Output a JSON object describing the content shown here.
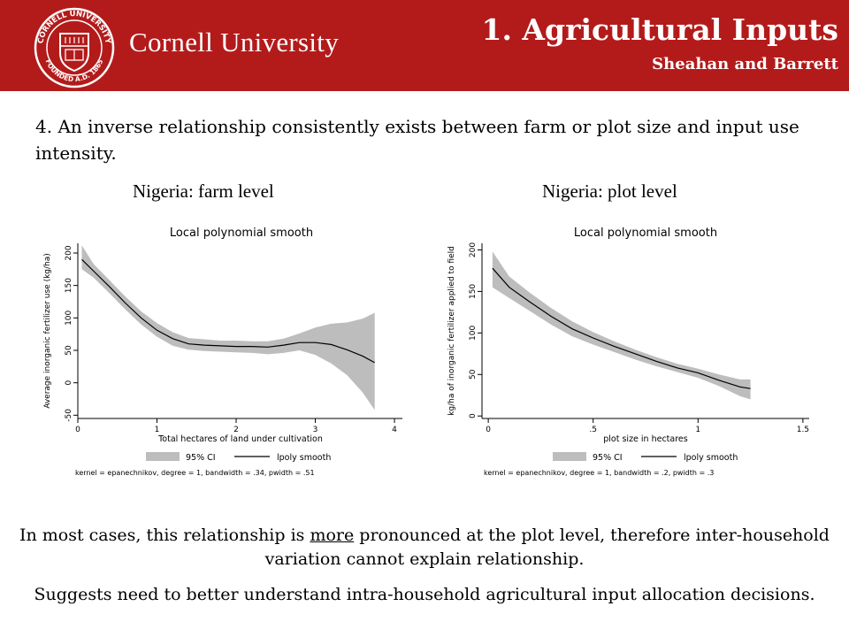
{
  "header": {
    "university_name": "Cornell University",
    "seal_text_top": "CORNELL UNIVERSITY",
    "seal_text_bottom": "FOUNDED A.D. 1865",
    "title": "1. Agricultural Inputs",
    "subtitle": "Sheahan and Barrett",
    "brand_color": "#b31b1b"
  },
  "point": {
    "text": "4. An inverse relationship consistently exists between farm or plot size and input use intensity."
  },
  "panels": {
    "left_title": "Nigeria: farm level",
    "right_title": "Nigeria: plot level"
  },
  "chart_data": [
    {
      "type": "line",
      "title": "Local polynomial smooth",
      "xlabel": "Total hectares of land under cultivation",
      "ylabel": "Average inorganic fertilizer use (kg/ha)",
      "xlim": [
        0,
        4.1
      ],
      "ylim": [
        -55,
        215
      ],
      "xticks": [
        "0",
        "1",
        "2",
        "3",
        "4"
      ],
      "xtick_values": [
        0,
        1,
        2,
        3,
        4
      ],
      "yticks": [
        "-50",
        "0",
        "50",
        "100",
        "150",
        "200"
      ],
      "ytick_values": [
        -50,
        0,
        50,
        100,
        150,
        200
      ],
      "legend": {
        "ci_label": "95% CI",
        "line_label": "lpoly smooth",
        "position": "bottom"
      },
      "note": "kernel = epanechnikov, degree = 1, bandwidth = .34, pwidth = .51",
      "ci_color": "#bdbdbd",
      "line_color": "#000000",
      "series": [
        {
          "name": "lpoly smooth",
          "x": [
            0.05,
            0.2,
            0.4,
            0.6,
            0.8,
            1.0,
            1.2,
            1.4,
            1.6,
            1.8,
            2.0,
            2.2,
            2.4,
            2.6,
            2.8,
            3.0,
            3.2,
            3.4,
            3.6,
            3.75
          ],
          "y": [
            190,
            172,
            148,
            123,
            100,
            81,
            68,
            60,
            58,
            57,
            56,
            56,
            55,
            58,
            62,
            62,
            59,
            51,
            41,
            31
          ],
          "ci_upper": [
            212,
            183,
            158,
            133,
            110,
            92,
            78,
            69,
            67,
            65,
            65,
            64,
            64,
            68,
            76,
            85,
            91,
            93,
            99,
            108
          ],
          "ci_lower": [
            175,
            162,
            138,
            113,
            90,
            71,
            57,
            51,
            49,
            48,
            47,
            46,
            44,
            46,
            50,
            43,
            30,
            12,
            -15,
            -42
          ]
        }
      ]
    },
    {
      "type": "line",
      "title": "Local polynomial smooth",
      "xlabel": "plot size in hectares",
      "ylabel": "kg/ha of inorganic fertilizer applied to field",
      "xlim": [
        -0.03,
        1.53
      ],
      "ylim": [
        -3,
        208
      ],
      "xticks": [
        "0",
        ".5",
        "1",
        "1.5"
      ],
      "xtick_values": [
        0,
        0.5,
        1,
        1.5
      ],
      "yticks": [
        "0",
        "50",
        "100",
        "150",
        "200"
      ],
      "ytick_values": [
        0,
        50,
        100,
        150,
        200
      ],
      "legend": {
        "ci_label": "95% CI",
        "line_label": "lpoly smooth",
        "position": "bottom"
      },
      "note": "kernel = epanechnikov, degree = 1, bandwidth = .2, pwidth = .3",
      "ci_color": "#bdbdbd",
      "line_color": "#000000",
      "series": [
        {
          "name": "lpoly smooth",
          "x": [
            0.02,
            0.1,
            0.2,
            0.3,
            0.4,
            0.5,
            0.6,
            0.7,
            0.8,
            0.9,
            1.0,
            1.1,
            1.2,
            1.25
          ],
          "y": [
            178,
            155,
            137,
            120,
            105,
            94,
            84,
            75,
            66,
            58,
            52,
            43,
            35,
            33
          ],
          "ci_upper": [
            198,
            168,
            148,
            130,
            114,
            101,
            90,
            80,
            71,
            63,
            57,
            50,
            44,
            44
          ],
          "ci_lower": [
            155,
            142,
            126,
            110,
            96,
            86,
            77,
            68,
            60,
            53,
            46,
            36,
            24,
            20
          ]
        }
      ]
    }
  ],
  "footer": {
    "line1_before": "In most cases, this relationship is ",
    "line1_emph": "more",
    "line1_after": " pronounced at the plot level, therefore inter-household variation cannot explain relationship.",
    "line2": "Suggests need to better understand intra-household agricultural input allocation decisions."
  }
}
